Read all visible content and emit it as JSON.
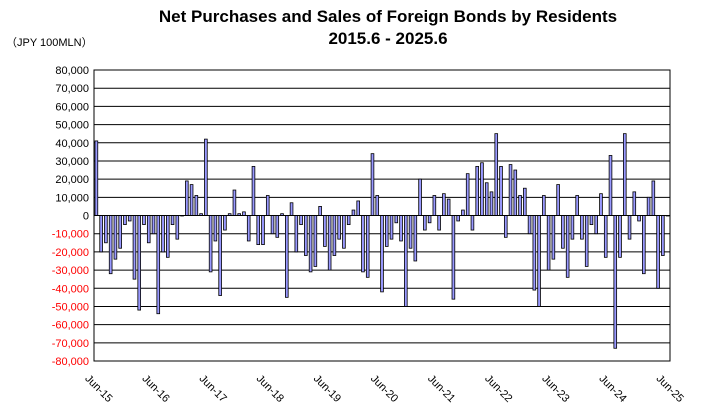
{
  "chart_data": {
    "type": "bar",
    "title": [
      "Net Purchases and Sales of Foreign Bonds by Residents",
      "2015.6 - 2025.6"
    ],
    "unit_label": "（JPY 100MLN）",
    "ylim": [
      -80000,
      80000
    ],
    "ytick_step": 10000,
    "ytick_labels": [
      "80,000",
      "70,000",
      "60,000",
      "50,000",
      "40,000",
      "30,000",
      "20,000",
      "10,000",
      "0",
      "-10,000",
      "-20,000",
      "-30,000",
      "-40,000",
      "-50,000",
      "-60,000",
      "-70,000",
      "-80,000"
    ],
    "xtick_labels": [
      "Jun-15",
      "Jun-16",
      "Jun-17",
      "Jun-18",
      "Jun-19",
      "Jun-20",
      "Jun-21",
      "Jun-22",
      "Jun-23",
      "Jun-24",
      "Jun-25"
    ],
    "grid": true,
    "bar_color": "#9999ff",
    "negative_label_color": "#ff0000",
    "positive_label_color": "#000000",
    "series": [
      {
        "start": "2015-06",
        "end": "2025-06",
        "values": [
          41000,
          -20000,
          -15000,
          -32000,
          -24000,
          -18000,
          -5000,
          -3000,
          -35000,
          -52000,
          -5000,
          -15000,
          -10000,
          -54000,
          -20000,
          -23000,
          -5000,
          -13000,
          0,
          19000,
          17000,
          11000,
          1000,
          42000,
          -31000,
          -14000,
          -44000,
          -8000,
          1000,
          14000,
          1000,
          2000,
          -14000,
          27000,
          -16000,
          -16000,
          11000,
          -10000,
          -12000,
          1000,
          -45000,
          7000,
          -20000,
          -5000,
          -22000,
          -31000,
          -28000,
          5000,
          -17000,
          -30000,
          -22000,
          -13000,
          -18000,
          -5000,
          3000,
          8000,
          -31000,
          -34000,
          34000,
          11000,
          -42000,
          -17000,
          -13000,
          -4000,
          -14000,
          -50000,
          -18000,
          -25000,
          20000,
          -8000,
          -4000,
          11000,
          -8000,
          12000,
          9000,
          -46000,
          -3000,
          3000,
          23000,
          -8000,
          27000,
          29000,
          18000,
          13000,
          45000,
          27000,
          -12000,
          28000,
          25000,
          11000,
          15000,
          -10000,
          -41000,
          -50000,
          11000,
          -30000,
          -24000,
          17000,
          -18000,
          -34000,
          -13000,
          11000,
          -13000,
          -28000,
          -5000,
          -10000,
          12000,
          -23000,
          33000,
          -73000,
          -23000,
          45000,
          -13000,
          13000,
          -3000,
          -32000,
          10000,
          19000,
          -40000,
          -22000,
          0
        ]
      }
    ]
  }
}
